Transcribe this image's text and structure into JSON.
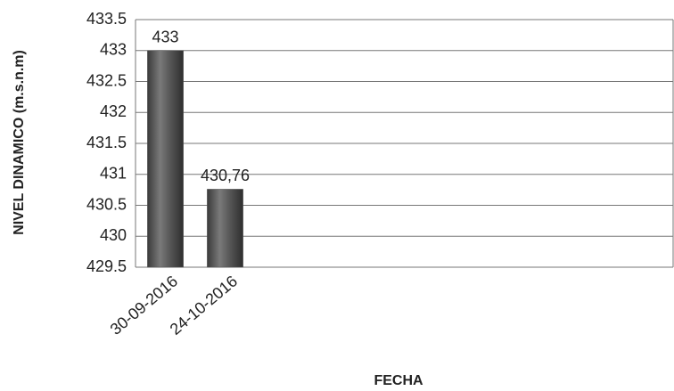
{
  "chart_data": {
    "type": "bar",
    "y_label": "NIVEL DINAMICO (m.s.n.m)",
    "x_label": "FECHA",
    "categories": [
      "30-09-2016",
      "24-10-2016",
      null,
      null,
      null,
      null,
      null,
      null,
      null
    ],
    "values": [
      433,
      430.76,
      null,
      null,
      null,
      null,
      null,
      null,
      null
    ],
    "value_labels": [
      "433",
      "430,76",
      null,
      null,
      null,
      null,
      null,
      null,
      null
    ],
    "color": "#555555",
    "ylim": [
      429.5,
      433.5
    ],
    "yticks": [
      429.5,
      430,
      430.5,
      431,
      431.5,
      432,
      432.5,
      433,
      433.5
    ],
    "grid": true
  }
}
